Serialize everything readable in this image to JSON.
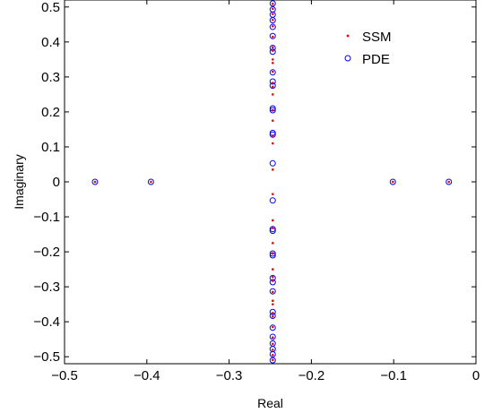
{
  "chart_data": {
    "type": "scatter",
    "title": "",
    "xlabel": "Real",
    "ylabel": "Imaginary",
    "xlim": [
      -0.5,
      0
    ],
    "ylim": [
      -0.52,
      0.52
    ],
    "xticks": [
      -0.5,
      -0.4,
      -0.3,
      -0.2,
      -0.1,
      0
    ],
    "xtick_labels": [
      "−0.5",
      "−0.4",
      "−0.3",
      "−0.2",
      "−0.1",
      "0"
    ],
    "yticks": [
      0.5,
      0.4,
      0.3,
      0.2,
      0.1,
      0,
      -0.1,
      -0.2,
      -0.3,
      -0.4,
      -0.5
    ],
    "ytick_labels": [
      "0.5",
      "0.4",
      "0.3",
      "0.2",
      "0.1",
      "0",
      "−0.1",
      "−0.2",
      "−0.3",
      "−0.4",
      "−0.5"
    ],
    "grid": false,
    "legend_position": "top-right",
    "series": [
      {
        "name": "SSM",
        "marker": "dot",
        "color": "#ff0000",
        "points": [
          [
            -0.463,
            0
          ],
          [
            -0.395,
            0
          ],
          [
            -0.101,
            0
          ],
          [
            -0.033,
            0
          ],
          [
            -0.247,
            0.509
          ],
          [
            -0.247,
            0.495
          ],
          [
            -0.247,
            0.48
          ],
          [
            -0.247,
            0.463
          ],
          [
            -0.247,
            0.445
          ],
          [
            -0.247,
            0.415
          ],
          [
            -0.247,
            0.385
          ],
          [
            -0.247,
            0.375
          ],
          [
            -0.247,
            0.35
          ],
          [
            -0.247,
            0.34
          ],
          [
            -0.247,
            0.315
          ],
          [
            -0.247,
            0.283
          ],
          [
            -0.247,
            0.272
          ],
          [
            -0.247,
            0.25
          ],
          [
            -0.247,
            0.205
          ],
          [
            -0.247,
            0.175
          ],
          [
            -0.247,
            0.132
          ],
          [
            -0.247,
            0.11
          ],
          [
            -0.247,
            0.035
          ],
          [
            -0.247,
            -0.035
          ],
          [
            -0.247,
            -0.11
          ],
          [
            -0.247,
            -0.132
          ],
          [
            -0.247,
            -0.175
          ],
          [
            -0.247,
            -0.205
          ],
          [
            -0.247,
            -0.25
          ],
          [
            -0.247,
            -0.272
          ],
          [
            -0.247,
            -0.283
          ],
          [
            -0.247,
            -0.315
          ],
          [
            -0.247,
            -0.34
          ],
          [
            -0.247,
            -0.35
          ],
          [
            -0.247,
            -0.375
          ],
          [
            -0.247,
            -0.385
          ],
          [
            -0.247,
            -0.415
          ],
          [
            -0.247,
            -0.445
          ],
          [
            -0.247,
            -0.463
          ],
          [
            -0.247,
            -0.48
          ],
          [
            -0.247,
            -0.495
          ],
          [
            -0.247,
            -0.509
          ]
        ]
      },
      {
        "name": "PDE",
        "marker": "circle",
        "color": "#0000ff",
        "points": [
          [
            -0.463,
            0
          ],
          [
            -0.395,
            0
          ],
          [
            -0.101,
            0
          ],
          [
            -0.033,
            0
          ],
          [
            -0.247,
            0.51
          ],
          [
            -0.247,
            0.493
          ],
          [
            -0.247,
            0.478
          ],
          [
            -0.247,
            0.462
          ],
          [
            -0.247,
            0.443
          ],
          [
            -0.247,
            0.417
          ],
          [
            -0.247,
            0.383
          ],
          [
            -0.247,
            0.372
          ],
          [
            -0.247,
            0.313
          ],
          [
            -0.247,
            0.287
          ],
          [
            -0.247,
            0.275
          ],
          [
            -0.247,
            0.21
          ],
          [
            -0.247,
            0.205
          ],
          [
            -0.247,
            0.14
          ],
          [
            -0.247,
            0.135
          ],
          [
            -0.247,
            0.053
          ],
          [
            -0.247,
            -0.053
          ],
          [
            -0.247,
            -0.135
          ],
          [
            -0.247,
            -0.14
          ],
          [
            -0.247,
            -0.205
          ],
          [
            -0.247,
            -0.21
          ],
          [
            -0.247,
            -0.275
          ],
          [
            -0.247,
            -0.287
          ],
          [
            -0.247,
            -0.313
          ],
          [
            -0.247,
            -0.372
          ],
          [
            -0.247,
            -0.383
          ],
          [
            -0.247,
            -0.417
          ],
          [
            -0.247,
            -0.443
          ],
          [
            -0.247,
            -0.462
          ],
          [
            -0.247,
            -0.478
          ],
          [
            -0.247,
            -0.493
          ],
          [
            -0.247,
            -0.51
          ]
        ]
      }
    ]
  }
}
